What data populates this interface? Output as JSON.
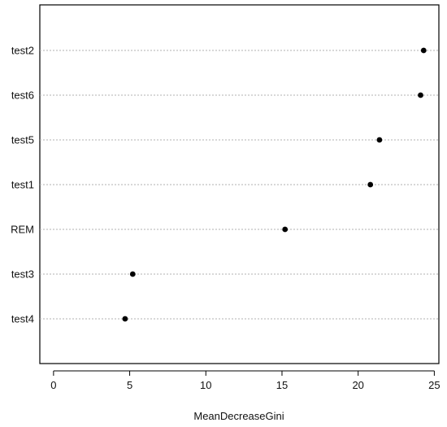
{
  "chart_data": {
    "type": "scatter",
    "subtype": "dotchart",
    "title": "",
    "xlabel": "MeanDecreaseGini",
    "ylabel": "",
    "categories": [
      "test2",
      "test6",
      "test5",
      "test1",
      "REM",
      "test3",
      "test4"
    ],
    "values": [
      24.3,
      24.1,
      21.4,
      20.8,
      15.2,
      5.2,
      4.7
    ],
    "xlim": [
      -0.9,
      25.3
    ],
    "xticks": [
      0,
      5,
      10,
      15,
      20,
      25
    ],
    "grid": "dotted horizontal guide per category",
    "legend": "none",
    "colors": {
      "points": "#000000",
      "guides": "#b0b0b0",
      "frame": "#000000"
    }
  }
}
